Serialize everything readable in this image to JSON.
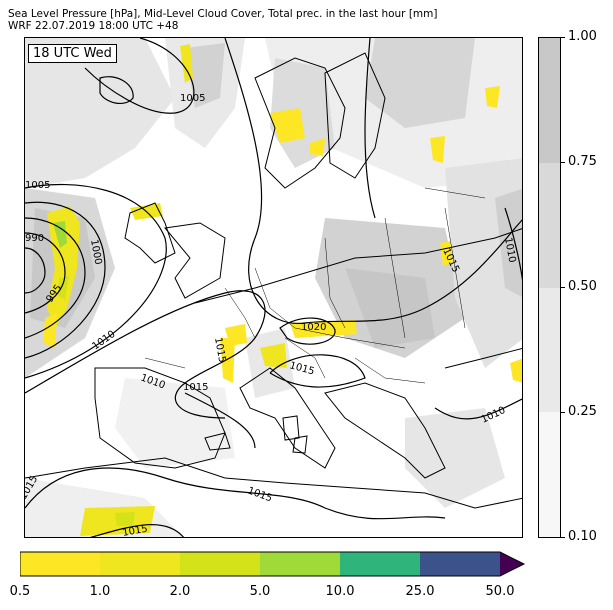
{
  "title_line1": "Sea Level Pressure [hPa], Mid-Level Cloud Cover, Total prec. in the last hour [mm]",
  "title_line2": "WRF 22.07.2019 18:00 UTC +48",
  "time_label": "18 UTC Wed",
  "isobar_labels": [
    "1005",
    "1005",
    "1000",
    "990",
    "995",
    "1010",
    "1010",
    "1015",
    "1015",
    "1020",
    "1015",
    "1015",
    "1010",
    "1015",
    "1015",
    "1015",
    "1010"
  ],
  "cloud_colorbar": {
    "ticks": [
      "0.10",
      "0.25",
      "0.50",
      "0.75",
      "1.00"
    ],
    "colors": [
      "#f7f7f7",
      "#e9e9e9",
      "#d9d9d9",
      "#c8c8c8"
    ]
  },
  "precip_colorbar": {
    "ticks": [
      "0.5",
      "1.0",
      "2.0",
      "5.0",
      "10.0",
      "25.0",
      "50.0"
    ],
    "colors": [
      "#fde725",
      "#f0e61f",
      "#d4e21a",
      "#a0da39",
      "#2fb47c",
      "#3b528b",
      "#440154"
    ],
    "extend": "max"
  },
  "colors": {
    "isobar": "#000000",
    "coast": "#000000",
    "border": "#000000"
  }
}
